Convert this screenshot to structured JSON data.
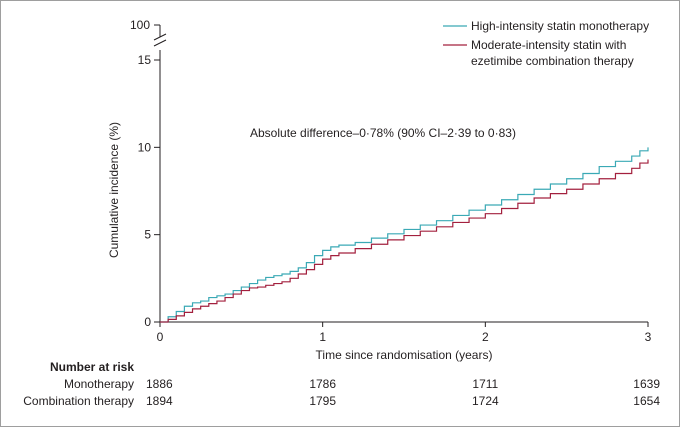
{
  "chart_data": {
    "type": "line",
    "title": "",
    "xlabel": "Time since randomisation (years)",
    "ylabel": "Cumulative incidence (%)",
    "xlim": [
      0,
      3
    ],
    "ylim": [
      0,
      15
    ],
    "y_break_label": "100",
    "x_ticks": [
      "0",
      "1",
      "2",
      "3"
    ],
    "y_ticks": [
      "0",
      "5",
      "10",
      "15"
    ],
    "grid": false,
    "legend_position": "top-right",
    "annotation": "Absolute difference–0·78% (90% CI–2·39 to 0·83)",
    "series": [
      {
        "name": "High-intensity statin monotherapy",
        "color": "#3aa9b5",
        "x": [
          0,
          0.05,
          0.1,
          0.15,
          0.2,
          0.25,
          0.3,
          0.35,
          0.4,
          0.45,
          0.5,
          0.55,
          0.6,
          0.65,
          0.7,
          0.75,
          0.8,
          0.85,
          0.9,
          0.95,
          1.0,
          1.05,
          1.1,
          1.2,
          1.3,
          1.4,
          1.5,
          1.6,
          1.7,
          1.8,
          1.9,
          2.0,
          2.1,
          2.2,
          2.3,
          2.4,
          2.5,
          2.6,
          2.7,
          2.8,
          2.9,
          2.95,
          3.0
        ],
        "y": [
          0,
          0.3,
          0.6,
          0.9,
          1.1,
          1.2,
          1.4,
          1.5,
          1.6,
          1.8,
          2.0,
          2.2,
          2.4,
          2.55,
          2.65,
          2.75,
          2.9,
          3.1,
          3.4,
          3.8,
          4.1,
          4.3,
          4.4,
          4.55,
          4.8,
          5.05,
          5.3,
          5.55,
          5.8,
          6.1,
          6.4,
          6.7,
          7.0,
          7.3,
          7.6,
          7.9,
          8.2,
          8.5,
          8.9,
          9.2,
          9.5,
          9.8,
          10.0
        ]
      },
      {
        "name": "Moderate-intensity statin with ezetimibe combination therapy",
        "color": "#a3203e",
        "x": [
          0,
          0.05,
          0.1,
          0.15,
          0.2,
          0.25,
          0.3,
          0.35,
          0.4,
          0.45,
          0.5,
          0.55,
          0.6,
          0.65,
          0.7,
          0.75,
          0.8,
          0.85,
          0.9,
          0.95,
          1.0,
          1.05,
          1.1,
          1.2,
          1.3,
          1.4,
          1.5,
          1.6,
          1.7,
          1.8,
          1.9,
          2.0,
          2.1,
          2.2,
          2.3,
          2.4,
          2.5,
          2.6,
          2.7,
          2.8,
          2.9,
          2.95,
          3.0
        ],
        "y": [
          0,
          0.15,
          0.35,
          0.55,
          0.75,
          0.9,
          1.05,
          1.2,
          1.4,
          1.6,
          1.8,
          1.95,
          2.0,
          2.1,
          2.2,
          2.3,
          2.5,
          2.75,
          3.0,
          3.3,
          3.6,
          3.8,
          3.95,
          4.2,
          4.45,
          4.7,
          4.95,
          5.2,
          5.45,
          5.7,
          5.95,
          6.2,
          6.5,
          6.8,
          7.1,
          7.35,
          7.6,
          7.9,
          8.2,
          8.5,
          8.8,
          9.1,
          9.3
        ]
      }
    ]
  },
  "risk_table": {
    "heading": "Number at risk",
    "rows": [
      {
        "label": "Monotherapy",
        "values": [
          "1886",
          "1786",
          "1711",
          "1639"
        ]
      },
      {
        "label": "Combination therapy",
        "values": [
          "1894",
          "1795",
          "1724",
          "1654"
        ]
      }
    ]
  }
}
